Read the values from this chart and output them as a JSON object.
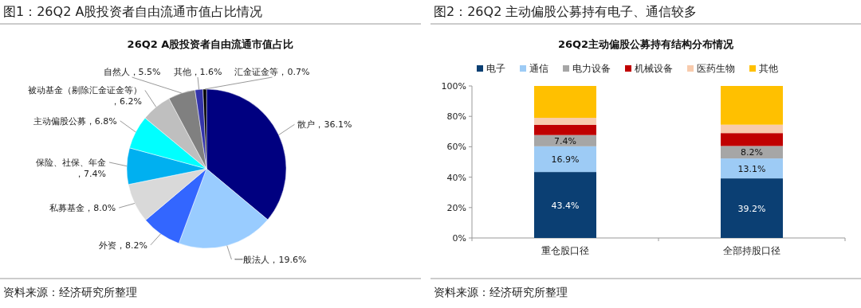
{
  "chart_data": [
    {
      "type": "pie",
      "title": "图1：26Q2 A股投资者自由流通市值占比情况",
      "subtitle": "26Q2 A股投资者自由流通市值占比",
      "categories": [
        "散户",
        "一般法人",
        "外资",
        "私募基金",
        "保险、社保、年金",
        "主动偏股公募",
        "被动基金（剔除汇金证金等）",
        "自然人",
        "其他",
        "汇金证金等"
      ],
      "values": [
        36.1,
        19.6,
        8.2,
        8.0,
        7.4,
        6.8,
        6.2,
        5.5,
        1.6,
        0.7
      ],
      "colors": [
        "#000080",
        "#99ccff",
        "#3366ff",
        "#d9d9d9",
        "#00b0f0",
        "#00ffff",
        "#bfbfbf",
        "#808080",
        "#3333aa",
        "#000000"
      ],
      "value_labels": [
        "，36.1%",
        "，19.6%",
        "，8.2%",
        "，8.0%",
        "，7.4%",
        "，6.8%",
        "，6.2%",
        "，5.5%",
        "，1.6%",
        "，0.7%"
      ],
      "annotations": [
        "资料来源：经济研究所整理"
      ]
    },
    {
      "type": "bar",
      "title": "图2：26Q2 主动偏股公募持有电子、通信较多",
      "subtitle": "26Q2主动偏股公募持有结构分布情况",
      "categories": [
        "重仓股口径",
        "全部持股口径"
      ],
      "stacked": true,
      "legend": "top",
      "ylim": [
        0,
        100
      ],
      "yticks": [
        {
          "value": 0,
          "label": "0%"
        },
        {
          "value": 20,
          "label": "20%"
        },
        {
          "value": 40,
          "label": "40%"
        },
        {
          "value": 60,
          "label": "60%"
        },
        {
          "value": 80,
          "label": "80%"
        },
        {
          "value": 100,
          "label": "100%"
        }
      ],
      "series": [
        {
          "name": "电子",
          "color": "#0b3f73",
          "values": [
            43.4,
            39.2
          ],
          "value_labels": [
            "43.4%",
            "39.2%"
          ]
        },
        {
          "name": "通信",
          "color": "#9dcbf5",
          "values": [
            16.9,
            13.1
          ],
          "value_labels": [
            "16.9%",
            "13.1%"
          ]
        },
        {
          "name": "电力设备",
          "color": "#a6a6a6",
          "values": [
            7.4,
            8.2
          ],
          "value_labels": [
            "7.4%",
            "8.2%"
          ]
        },
        {
          "name": "机械设备",
          "color": "#c00000",
          "values": [
            6.8,
            8.5
          ]
        },
        {
          "name": "医药生物",
          "color": "#f8cbad",
          "values": [
            4.5,
            5.5
          ]
        },
        {
          "name": "其他",
          "color": "#ffc000",
          "values": [
            21.0,
            25.5
          ]
        }
      ],
      "annotations": [
        "资料来源：经济研究所整理"
      ]
    }
  ]
}
